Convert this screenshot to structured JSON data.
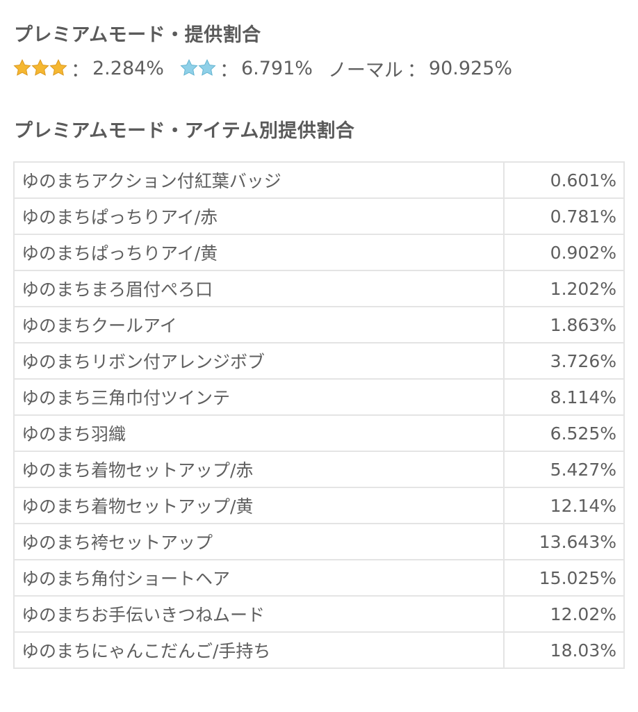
{
  "summary": {
    "title": "プレミアムモード・提供割合",
    "three_star_rate": "2.284%",
    "two_star_rate": "6.791%",
    "normal_label": "ノーマル",
    "normal_rate": "90.925%",
    "separator": "：",
    "three_star_icon": "gold-star-icon",
    "two_star_icon": "blue-star-icon",
    "gold_star_color": "#f5b731",
    "blue_star_color": "#8fd0e8"
  },
  "items_section": {
    "title": "プレミアムモード・アイテム別提供割合",
    "rows": [
      {
        "name": "ゆのまちアクション付紅葉バッジ",
        "rate": "0.601%"
      },
      {
        "name": "ゆのまちぱっちりアイ/赤",
        "rate": "0.781%"
      },
      {
        "name": "ゆのまちぱっちりアイ/黄",
        "rate": "0.902%"
      },
      {
        "name": "ゆのまちまろ眉付ぺろ口",
        "rate": "1.202%"
      },
      {
        "name": "ゆのまちクールアイ",
        "rate": "1.863%"
      },
      {
        "name": "ゆのまちリボン付アレンジボブ",
        "rate": "3.726%"
      },
      {
        "name": "ゆのまち三角巾付ツインテ",
        "rate": "8.114%"
      },
      {
        "name": "ゆのまち羽織",
        "rate": "6.525%"
      },
      {
        "name": "ゆのまち着物セットアップ/赤",
        "rate": "5.427%"
      },
      {
        "name": "ゆのまち着物セットアップ/黄",
        "rate": "12.14%"
      },
      {
        "name": "ゆのまち袴セットアップ",
        "rate": "13.643%"
      },
      {
        "name": "ゆのまち角付ショートヘア",
        "rate": "15.025%"
      },
      {
        "name": "ゆのまちお手伝いきつねムード",
        "rate": "12.02%"
      },
      {
        "name": "ゆのまちにゃんこだんご/手持ち",
        "rate": "18.03%"
      }
    ]
  }
}
